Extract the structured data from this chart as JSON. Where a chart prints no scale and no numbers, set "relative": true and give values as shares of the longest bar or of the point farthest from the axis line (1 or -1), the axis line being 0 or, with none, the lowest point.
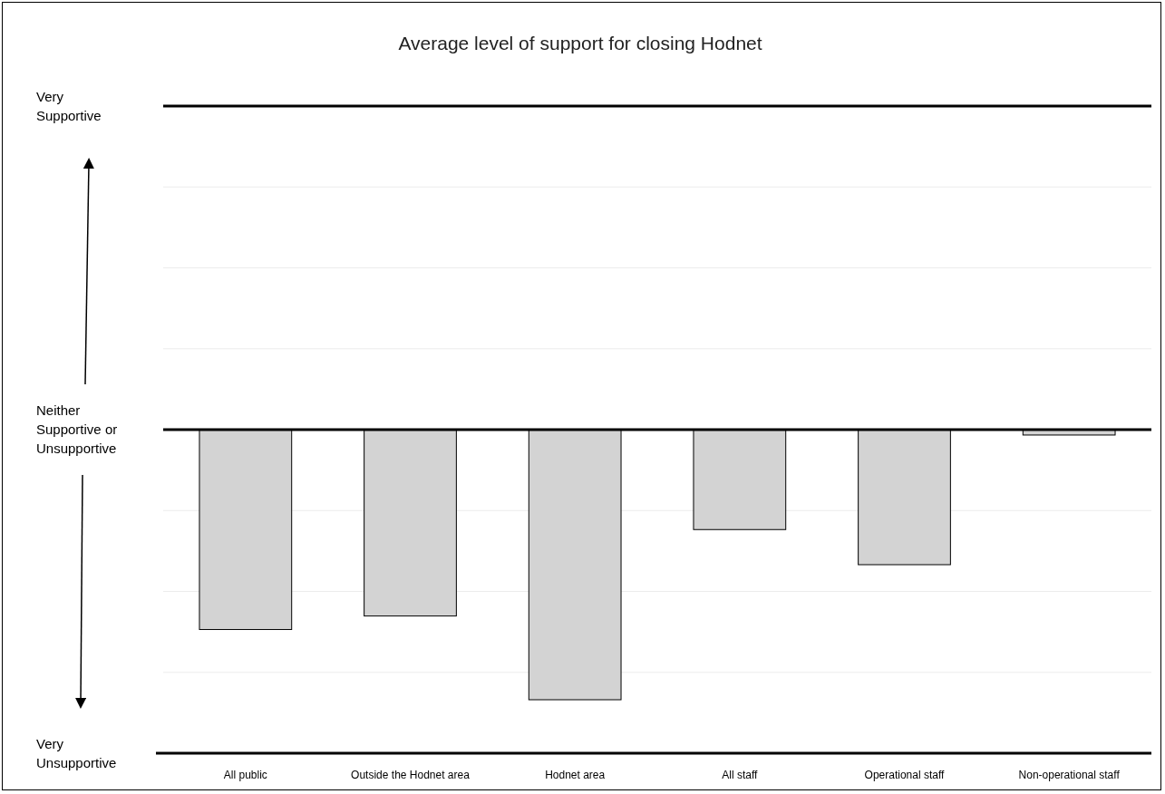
{
  "chart_data": {
    "type": "bar",
    "title": "Average level of support for closing Hodnet",
    "categories": [
      "All public",
      "Outside the Hodnet area",
      "Hodnet area",
      "All staff",
      "Operational staff",
      "Non-operational staff"
    ],
    "values": [
      -0.74,
      -0.69,
      -1,
      -0.37,
      -0.5,
      -0.02
    ],
    "relative": true,
    "color": "#d3d3d3",
    "annotations": [
      "Very Supportive",
      "Neither Supportive or Unsupportive",
      "Very Unsupportive"
    ],
    "grid": true
  }
}
